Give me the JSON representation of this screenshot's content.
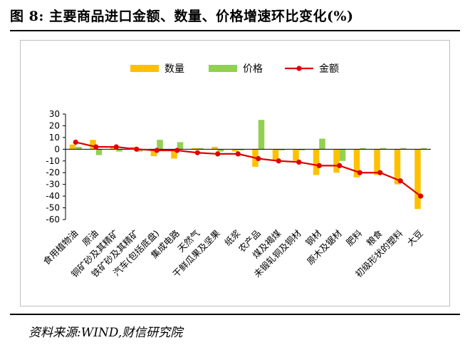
{
  "figure": {
    "title": "图 8: 主要商品进口金额、数量、价格增速环比变化(%)",
    "source": "资料来源:WIND,财信研究院"
  },
  "chart_data": {
    "type": "bar",
    "ylim": [
      -60,
      30
    ],
    "yticks": [
      30,
      20,
      10,
      0,
      -10,
      -20,
      -30,
      -40,
      -50,
      -60
    ],
    "legend_position": "top",
    "legend": [
      "数量",
      "价格",
      "金额"
    ],
    "categories": [
      "食用植物油",
      "原油",
      "铜矿砂及其精矿",
      "铁矿砂及其精矿",
      "汽车(包括底盘)",
      "集成电路",
      "天然气",
      "干鲜瓜果及坚果",
      "纸浆",
      "农产品",
      "煤及褐煤",
      "未锻轧铜及铜材",
      "钢材",
      "原木及锯材",
      "肥料",
      "粮食",
      "初级形状的塑料",
      "大豆"
    ],
    "series": [
      {
        "name": "数量",
        "type": "bar",
        "color": "#FFC000",
        "values": [
          4,
          8,
          2,
          2,
          -6,
          -8,
          1,
          2,
          -2,
          -15,
          -9,
          -10,
          -22,
          -20,
          -24,
          -22,
          -30,
          -51
        ]
      },
      {
        "name": "价格",
        "type": "bar",
        "color": "#92D050",
        "values": [
          2,
          -5,
          -2,
          -2,
          8,
          6,
          1,
          -2,
          -1,
          25,
          -1,
          -1,
          9,
          -10,
          1,
          1,
          1,
          1
        ]
      },
      {
        "name": "金额",
        "type": "line",
        "color": "#E00000",
        "values": [
          6,
          2,
          2,
          0,
          -1,
          -1,
          -3,
          -4,
          -4,
          -8,
          -10,
          -11,
          -14,
          -14,
          -20,
          -20,
          -27,
          -40
        ]
      }
    ]
  }
}
